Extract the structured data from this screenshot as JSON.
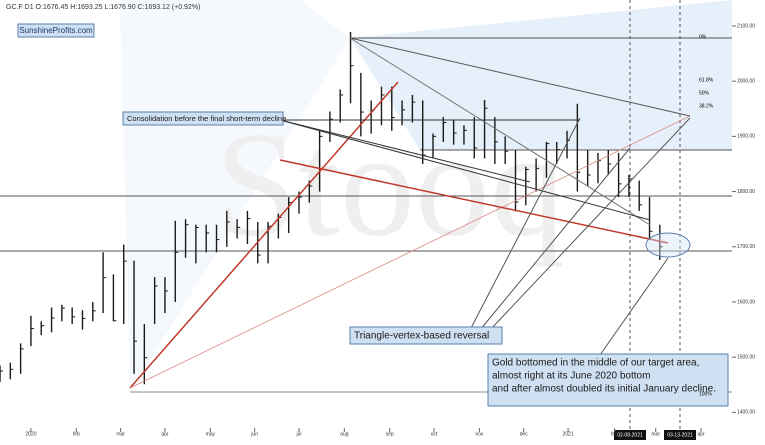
{
  "chart_data": {
    "type": "ohlc",
    "title": "GC.F  D1  O:1676.45  H:1693.25  L:1676.90  C:1693.12 (+0.92%)",
    "watermark": "Stooq",
    "source": "SunshineProfits.com",
    "annotations": [
      "Consolidation before the final short-term decline",
      "Triangle-vertex-based reversal",
      "Gold bottomed in the middle of our target area,",
      "almost right at its June 2020 bottom",
      "and after almost doubled its initial January decline."
    ],
    "date_markers": [
      "02-08-2021",
      "03-13-2021"
    ],
    "fib_labels": [
      "0%",
      "61.8%",
      "50%",
      "38.2%",
      "100%"
    ],
    "color": "#1a1a1a",
    "x": [
      -3,
      -2,
      -1,
      0,
      1,
      2,
      3,
      4,
      5,
      6,
      7,
      8,
      9,
      10,
      11,
      12,
      13,
      14,
      15,
      16,
      17,
      18,
      19,
      20,
      21,
      22,
      23,
      24,
      25,
      26,
      27,
      28,
      29,
      30,
      31,
      32,
      33,
      34,
      35,
      36,
      37,
      38,
      39,
      40,
      41,
      42,
      43,
      44,
      45,
      46,
      47,
      48,
      49,
      50,
      51,
      52,
      53,
      54,
      55,
      56,
      57,
      58,
      59,
      60,
      61
    ],
    "high": [
      1485,
      1490,
      1525,
      1575,
      1565,
      1590,
      1595,
      1590,
      1585,
      1600,
      1690,
      1650,
      1704,
      1675,
      1560,
      1645,
      1645,
      1747,
      1750,
      1740,
      1740,
      1740,
      1765,
      1750,
      1765,
      1745,
      1745,
      1760,
      1790,
      1800,
      1820,
      1910,
      1945,
      1985,
      2089,
      2015,
      1965,
      1990,
      1990,
      1965,
      1975,
      1965,
      1905,
      1935,
      1930,
      1920,
      1935,
      1966,
      1935,
      1900,
      1875,
      1845,
      1860,
      1890,
      1890,
      1910,
      1959,
      1875,
      1870,
      1875,
      1870,
      1830,
      1820,
      1790,
      1740
    ],
    "low": [
      1455,
      1460,
      1470,
      1520,
      1540,
      1545,
      1565,
      1560,
      1550,
      1565,
      1580,
      1565,
      1560,
      1470,
      1451,
      1560,
      1580,
      1600,
      1680,
      1670,
      1690,
      1690,
      1700,
      1715,
      1705,
      1670,
      1670,
      1715,
      1725,
      1760,
      1780,
      1800,
      1890,
      1925,
      1960,
      1900,
      1905,
      1920,
      1910,
      1920,
      1925,
      1850,
      1860,
      1890,
      1885,
      1885,
      1860,
      1860,
      1850,
      1850,
      1764,
      1775,
      1800,
      1825,
      1850,
      1860,
      1800,
      1810,
      1815,
      1830,
      1790,
      1790,
      1765,
      1715,
      1676
    ],
    "close": [
      1475,
      1478,
      1515,
      1552,
      1557,
      1571,
      1589,
      1573,
      1570,
      1584,
      1644,
      1566,
      1674,
      1529,
      1499,
      1629,
      1620,
      1690,
      1740,
      1735,
      1725,
      1713,
      1745,
      1735,
      1751,
      1685,
      1737,
      1753,
      1780,
      1790,
      1810,
      1900,
      1931,
      1975,
      2028,
      1944,
      1947,
      1975,
      1934,
      1948,
      1962,
      1866,
      1900,
      1925,
      1906,
      1911,
      1879,
      1951,
      1890,
      1873,
      1781,
      1840,
      1842,
      1887,
      1876,
      1893,
      1835,
      1830,
      1856,
      1850,
      1814,
      1823,
      1776,
      1728,
      1700
    ],
    "xlim": [
      -3,
      68
    ],
    "xticks": [
      {
        "value": 0,
        "label": "2020"
      },
      {
        "value": 4.4,
        "label": "feb"
      },
      {
        "value": 8.7,
        "label": "mar"
      },
      {
        "value": 13,
        "label": "apr"
      },
      {
        "value": 17.4,
        "label": "may"
      },
      {
        "value": 21.7,
        "label": "jun"
      },
      {
        "value": 26,
        "label": "jul"
      },
      {
        "value": 30.4,
        "label": "aug"
      },
      {
        "value": 34.8,
        "label": "sep"
      },
      {
        "value": 39.1,
        "label": "oct"
      },
      {
        "value": 43.5,
        "label": "nov"
      },
      {
        "value": 47.8,
        "label": "dec"
      },
      {
        "value": 52.1,
        "label": "2021"
      },
      {
        "value": 56.6,
        "label": "feb"
      },
      {
        "value": 60.6,
        "label": "mar"
      },
      {
        "value": 65,
        "label": "apr"
      }
    ],
    "ylim": [
      1350,
      2147
    ],
    "yticks": [
      {
        "value": 1400,
        "label": "1400.00"
      },
      {
        "value": 1500,
        "label": "1500.00"
      },
      {
        "value": 1600,
        "label": "1600.00"
      },
      {
        "value": 1700,
        "label": "1700.00"
      },
      {
        "value": 1800,
        "label": "1800.00"
      },
      {
        "value": 1900,
        "label": "1900.00"
      },
      {
        "value": 2000,
        "label": "2000.00"
      },
      {
        "value": 2100,
        "label": "2100.00"
      }
    ]
  }
}
